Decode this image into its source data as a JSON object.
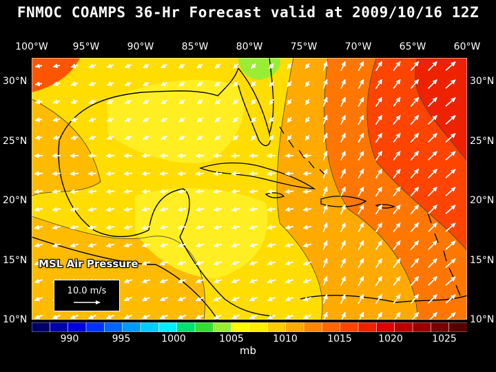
{
  "title": "FNMOC COAMPS 36-Hr Forecast valid at 2009/10/16 12Z",
  "field_label": "MSL Air Pressure",
  "vector_legend": "10.0 m/s",
  "units": "mb",
  "lon_labels": [
    "100°W",
    "95°W",
    "90°W",
    "85°W",
    "80°W",
    "75°W",
    "70°W",
    "65°W",
    "60°W"
  ],
  "lat_labels": [
    "30°N",
    "25°N",
    "20°N",
    "15°N",
    "10°N"
  ],
  "colorbar": {
    "labels": [
      "990",
      "995",
      "1000",
      "1005",
      "1010",
      "1015",
      "1020",
      "1025"
    ],
    "colors": [
      "#000066",
      "#0000aa",
      "#0000dd",
      "#0033ff",
      "#0066ff",
      "#0099ff",
      "#00ccff",
      "#00eeff",
      "#00e070",
      "#33dd33",
      "#99ee33",
      "#ffff00",
      "#ffee00",
      "#ffcc00",
      "#ffaa00",
      "#ff8800",
      "#ff6600",
      "#ff4400",
      "#ee2200",
      "#dd0000",
      "#bb0000",
      "#990000",
      "#770000",
      "#550000"
    ]
  },
  "colors": {
    "c1006": "#99ee33",
    "c1008": "#ffff00",
    "c1010": "#ffdd00",
    "c1012": "#ffbb00",
    "c1014": "#ff8800",
    "c1016": "#ff6600",
    "c1018": "#ff3300",
    "c1020": "#ee1100"
  }
}
